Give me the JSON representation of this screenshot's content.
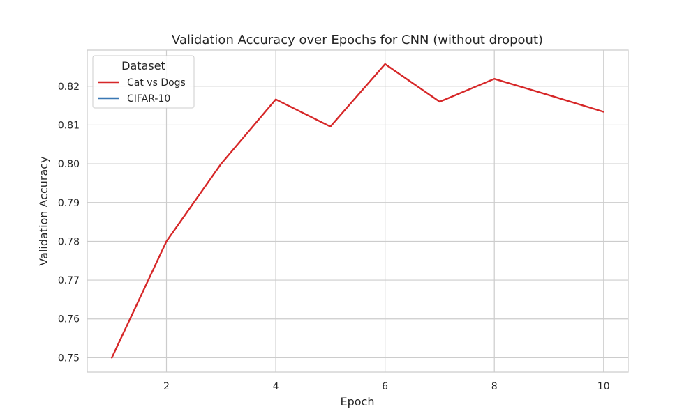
{
  "chart_data": {
    "type": "line",
    "title": "Validation Accuracy over Epochs for CNN (without dropout)",
    "xlabel": "Epoch",
    "ylabel": "Validation Accuracy",
    "xlim": [
      0.55,
      10.45
    ],
    "ylim": [
      0.7463,
      0.8293
    ],
    "xticks": [
      2,
      4,
      6,
      8,
      10
    ],
    "yticks": [
      0.75,
      0.76,
      0.77,
      0.78,
      0.79,
      0.8,
      0.81,
      0.82
    ],
    "ytick_labels": [
      "0.75",
      "0.76",
      "0.77",
      "0.78",
      "0.79",
      "0.80",
      "0.81",
      "0.82"
    ],
    "grid": true,
    "legend": {
      "title": "Dataset",
      "placement": "top-left"
    },
    "series": [
      {
        "name": "Cat vs Dogs",
        "color": "#d62728",
        "x": [
          1,
          2,
          3,
          4,
          5,
          6,
          7,
          8,
          9,
          10
        ],
        "values": [
          0.75,
          0.78,
          0.8,
          0.8166,
          0.8096,
          0.8257,
          0.816,
          0.8219,
          0.8177,
          0.8134
        ]
      },
      {
        "name": "CIFAR-10",
        "color": "#3a78b4",
        "x": [],
        "values": []
      }
    ]
  }
}
